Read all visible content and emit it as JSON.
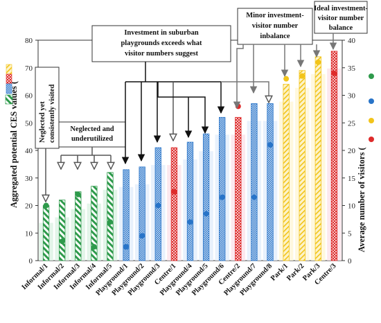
{
  "chart_data": {
    "type": "bar",
    "categories": [
      "Informal/1",
      "Informal/2",
      "Informal/3",
      "Informal/4",
      "Informal/5",
      "Playground/1",
      "Playground/2",
      "Playground/3",
      "Centre/1",
      "Playground/4",
      "Playground/5",
      "Playground/6",
      "Centre/2",
      "Playground/7",
      "Playground/8",
      "Park/1",
      "Park/2",
      "Park/3",
      "Centre/3"
    ],
    "groups": [
      "informal",
      "informal",
      "informal",
      "informal",
      "informal",
      "playground",
      "playground",
      "playground",
      "centre",
      "playground",
      "playground",
      "playground",
      "centre",
      "playground",
      "playground",
      "park",
      "park",
      "park",
      "centre"
    ],
    "series": [
      {
        "axis": "left",
        "values": [
          20,
          22,
          25,
          27,
          32,
          33,
          34,
          41,
          41,
          43,
          46,
          52,
          52,
          57,
          57,
          64,
          69,
          74,
          76
        ]
      },
      {
        "axis": "right",
        "values": [
          10,
          3.5,
          12,
          2.5,
          7,
          2.5,
          4.5,
          10,
          12.5,
          7,
          8.5,
          11.5,
          28,
          11.5,
          21,
          33,
          33.5,
          36,
          34
        ]
      }
    ],
    "ylabel": "Aggregated potential CES values (",
    "y2label": "Average number of visitors (",
    "ylim": [
      0,
      80
    ],
    "y2lim": [
      0,
      40
    ],
    "yticks": [
      0,
      10,
      20,
      30,
      40,
      50,
      60,
      70,
      80
    ],
    "y2ticks": [
      0,
      5,
      10,
      15,
      20,
      25,
      30,
      35,
      40
    ],
    "colors": {
      "informal": "#2e9a4b",
      "playground": "#2874c8",
      "centre": "#de2b2b",
      "park": "#f2c41a"
    },
    "annotations": [
      {
        "text": [
          "Neglected yet",
          "consistently visited"
        ]
      },
      {
        "text": [
          "Neglected and",
          "underutilized"
        ]
      },
      {
        "text": [
          "Investment in suburban",
          "playgrounds exceeds what",
          "visitor numbers suggest"
        ]
      },
      {
        "text": [
          "Minor investment-",
          "visitor number",
          "inbalance"
        ]
      },
      {
        "text": [
          "Ideal investment-",
          "visitor number",
          "balance"
        ]
      }
    ]
  }
}
